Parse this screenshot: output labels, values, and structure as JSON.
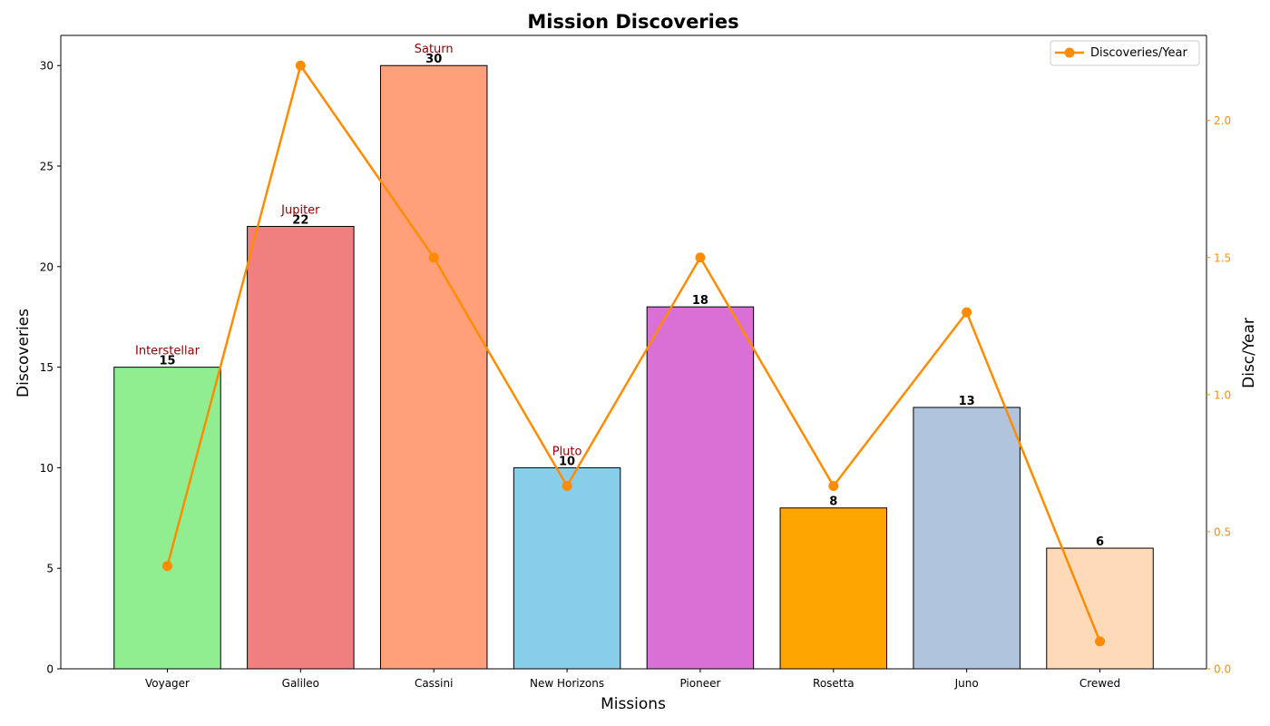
{
  "chart_data": {
    "type": "bar",
    "title": "Mission Discoveries",
    "xlabel": "Missions",
    "ylabel": "Discoveries",
    "y2label": "Disc/Year",
    "categories": [
      "Voyager",
      "Galileo",
      "Cassini",
      "New Horizons",
      "Pioneer",
      "Rosetta",
      "Juno",
      "Crewed"
    ],
    "bars": {
      "values": [
        15,
        22,
        30,
        10,
        18,
        8,
        13,
        6
      ],
      "colors": [
        "#90EE90",
        "#F08080",
        "#FFA07A",
        "#87CEEB",
        "#DA70D6",
        "#FFA500",
        "#B0C4DE",
        "#FFDAB9"
      ],
      "edge_color": "#000000"
    },
    "line": {
      "name": "Discoveries/Year",
      "values": [
        0.375,
        2.2,
        1.5,
        0.667,
        1.5,
        0.667,
        1.3,
        0.1
      ],
      "color": "#FF8C00"
    },
    "annotations": [
      {
        "category": "Voyager",
        "text": "Interstellar"
      },
      {
        "category": "Galileo",
        "text": "Jupiter"
      },
      {
        "category": "Cassini",
        "text": "Saturn"
      },
      {
        "category": "New Horizons",
        "text": "Pluto"
      }
    ],
    "annotation_color": "#8B0000",
    "ylim": [
      0,
      31.5
    ],
    "y_ticks": [
      "0",
      "5",
      "10",
      "15",
      "20",
      "25",
      "30"
    ],
    "y2lim": [
      0,
      2.31
    ],
    "y2_ticks": [
      "0.0",
      "0.5",
      "1.0",
      "1.5",
      "2.0"
    ],
    "legend_position": "top-right",
    "grid": false
  }
}
